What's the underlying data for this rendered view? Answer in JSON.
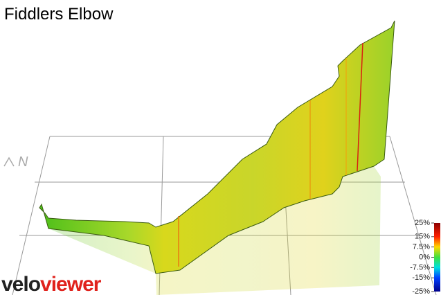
{
  "title": "Fiddlers Elbow",
  "compass": "N",
  "logo": {
    "dark": "velo",
    "accent": "viewer"
  },
  "gradient_scale": {
    "ticks": [
      {
        "value": 25,
        "label": "25%"
      },
      {
        "value": 15,
        "label": "15%"
      },
      {
        "value": 7.5,
        "label": "7.5%"
      },
      {
        "value": 0,
        "label": "0%"
      },
      {
        "value": -7.5,
        "label": "-7.5%"
      },
      {
        "value": -15,
        "label": "-15%"
      },
      {
        "value": -25,
        "label": "-25%"
      }
    ]
  }
}
